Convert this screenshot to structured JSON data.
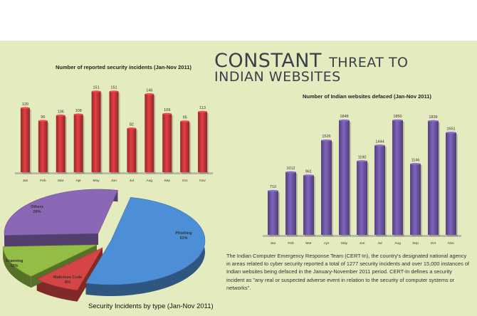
{
  "headline": {
    "word1": "CONSTANT",
    "word2": "THREAT TO",
    "line2": "INDIAN WEBSITES"
  },
  "description": "The Indian Computer Emergency Response Team (CERT-In), the country's designated national agency in areas related to cyber security reported a total of 1277 security incidents and over 15,000 instances of Indian websites being defaced in the January-November 2011 period. CERT-In defines a security incident as \"any real or suspected adverse event in relation to the security of computer systems or networks\".",
  "chart_data": [
    {
      "type": "bar",
      "title": "Number of reported security incidents (Jan-Nov 2011)",
      "categories": [
        "Jan",
        "Feb",
        "Mar",
        "Apr",
        "May",
        "Jun",
        "Jul",
        "Aug",
        "Sep",
        "Oct",
        "Nov"
      ],
      "values": [
        120,
        96,
        106,
        108,
        151,
        151,
        82,
        146,
        109,
        95,
        113
      ],
      "ylim": [
        0,
        165
      ],
      "grid": false,
      "color": "#c7373a"
    },
    {
      "type": "bar",
      "title": "Number of Indian websites defaced (Jan-Nov 2011)",
      "categories": [
        "Jan",
        "Feb",
        "Mar",
        "Apr",
        "May",
        "Jun",
        "Jul",
        "Aug",
        "Sep",
        "Oct",
        "Nov"
      ],
      "values": [
        710,
        1012,
        961,
        1526,
        1848,
        1190,
        1444,
        1850,
        1146,
        1839,
        1651
      ],
      "ylim": [
        0,
        2000
      ],
      "grid": false,
      "color": "#6f57a6"
    },
    {
      "type": "pie",
      "title": "Security Incidents by type (Jan-Nov 2011)",
      "slices": [
        {
          "label": "Phishing",
          "percent_label": "51%",
          "value": 51,
          "color": "#4d8fd6"
        },
        {
          "label": "Malicious Code",
          "percent_label": "8%",
          "value": 8,
          "color": "#d64545"
        },
        {
          "label": "Scanning",
          "percent_label": "12%",
          "value": 12,
          "color": "#93bd45"
        },
        {
          "label": "Others",
          "percent_label": "29%",
          "value": 29,
          "color": "#8a68b5"
        }
      ]
    }
  ]
}
